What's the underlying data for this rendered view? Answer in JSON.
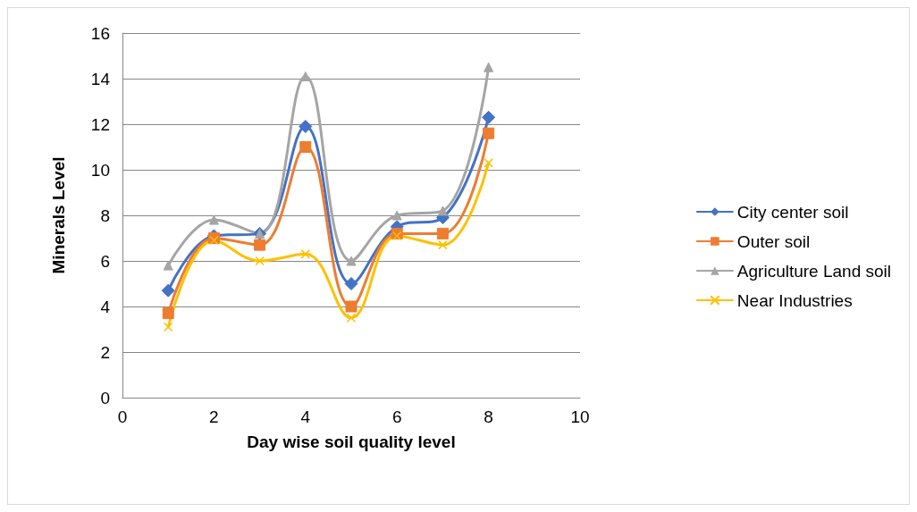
{
  "chart_data": {
    "type": "line",
    "xlabel": "Day wise soil quality level",
    "ylabel": "Minerals Level",
    "x": [
      1,
      2,
      3,
      4,
      5,
      6,
      7,
      8
    ],
    "xlim": [
      0,
      10
    ],
    "xticks": [
      0,
      2,
      4,
      6,
      8,
      10
    ],
    "ylim": [
      0,
      16
    ],
    "yticks": [
      0,
      2,
      4,
      6,
      8,
      10,
      12,
      14,
      16
    ],
    "grid": "y",
    "legend": "right",
    "series": [
      {
        "name": "City center soil",
        "color": "#4472c4",
        "marker": "diamond",
        "values": [
          4.7,
          7.1,
          7.2,
          11.9,
          5.0,
          7.5,
          7.9,
          12.3
        ]
      },
      {
        "name": "Outer soil",
        "color": "#ed7d31",
        "marker": "square",
        "values": [
          3.7,
          7.0,
          6.7,
          11.0,
          4.0,
          7.2,
          7.2,
          11.6
        ]
      },
      {
        "name": "Agriculture Land soil",
        "color": "#a5a5a5",
        "marker": "triangle",
        "values": [
          5.8,
          7.8,
          7.2,
          14.1,
          6.0,
          8.0,
          8.2,
          14.5
        ]
      },
      {
        "name": "Near Industries",
        "color": "#ffc000",
        "marker": "cross",
        "values": [
          3.1,
          6.9,
          6.0,
          6.3,
          3.5,
          7.1,
          6.7,
          10.3
        ]
      }
    ]
  }
}
